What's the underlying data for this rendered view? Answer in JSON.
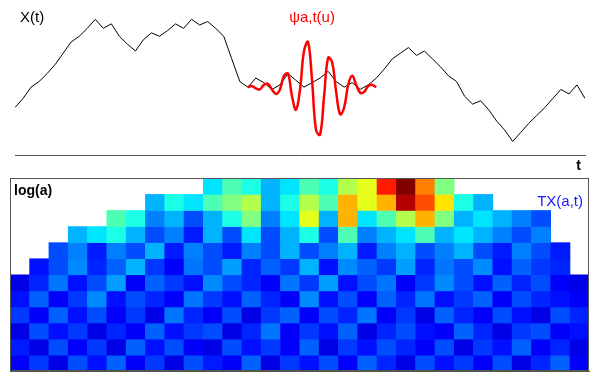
{
  "chart_data": [
    {
      "type": "line",
      "xlabel": "t",
      "x": [
        0,
        1,
        2,
        3,
        4,
        5,
        6,
        7,
        8,
        9,
        10,
        11,
        12,
        13,
        14,
        15,
        16,
        17,
        18,
        19,
        20,
        21,
        22,
        23,
        24,
        25,
        26,
        27,
        28,
        29,
        30,
        31,
        32,
        33,
        34,
        35,
        36,
        37,
        38,
        39,
        40,
        41,
        42,
        43,
        44,
        45,
        46,
        47,
        48,
        49,
        50,
        51,
        52,
        53,
        54,
        55,
        56,
        57,
        58,
        59,
        60,
        61,
        62,
        63,
        64,
        65,
        66,
        67,
        68,
        69,
        70,
        71
      ],
      "series": [
        {
          "name": "X(t)",
          "color": "#000000",
          "values": [
            42,
            50,
            60,
            65,
            72,
            80,
            90,
            100,
            105,
            112,
            120,
            112,
            116,
            105,
            98,
            92,
            102,
            108,
            105,
            110,
            116,
            112,
            120,
            115,
            118,
            112,
            105,
            85,
            65,
            60,
            68,
            64,
            58,
            62,
            72,
            66,
            60,
            64,
            68,
            74,
            65,
            60,
            64,
            58,
            62,
            68,
            76,
            85,
            90,
            95,
            88,
            92,
            85,
            78,
            70,
            65,
            52,
            45,
            48,
            40,
            30,
            22,
            12,
            20,
            28,
            35,
            42,
            50,
            58,
            54,
            62,
            50
          ]
        },
        {
          "name": "ψa,t(u)",
          "color": "#ff0000",
          "x": [
            29,
            29.5,
            30,
            30.5,
            31,
            31.5,
            32,
            32.5,
            33,
            33.5,
            34,
            34.5,
            35,
            35.5,
            36,
            36.5,
            37,
            37.5,
            38,
            38.5,
            39,
            39.5,
            40,
            40.5,
            41,
            41.5,
            42,
            42.5,
            43,
            43.5,
            44,
            44.5,
            45
          ],
          "values": [
            60,
            61,
            59,
            58,
            62,
            63,
            58,
            54,
            58,
            70,
            72,
            52,
            40,
            58,
            92,
            100,
            66,
            22,
            18,
            52,
            86,
            82,
            56,
            36,
            42,
            62,
            70,
            62,
            55,
            56,
            61,
            62,
            60
          ]
        }
      ],
      "xlim": [
        0,
        71
      ],
      "ylim": [
        0,
        130
      ],
      "tick_labels": false,
      "grid": false
    },
    {
      "type": "heatmap",
      "ylabel": "log(a)",
      "annotation": "TX(a,t)",
      "xlim": [
        0,
        30
      ],
      "ylim": [
        0,
        12
      ],
      "zlim": [
        0,
        1
      ],
      "cells": [
        [
          0.12,
          0.18,
          0.1,
          0.2,
          0.14,
          0.22,
          0.12,
          0.18,
          0.1,
          0.2,
          0.15,
          0.12,
          0.22,
          0.1,
          0.18,
          0.14,
          0.2,
          0.12,
          0.22,
          0.16,
          0.1,
          0.2,
          0.14,
          0.18,
          0.12,
          0.2,
          0.1,
          0.16,
          0.22,
          0.12
        ],
        [
          0.15,
          0.1,
          0.2,
          0.12,
          0.18,
          0.1,
          0.22,
          0.14,
          0.2,
          0.12,
          0.1,
          0.2,
          0.14,
          0.18,
          0.12,
          0.22,
          0.1,
          0.18,
          0.14,
          0.2,
          0.16,
          0.12,
          0.2,
          0.1,
          0.18,
          0.14,
          0.22,
          0.12,
          0.16,
          0.1
        ],
        [
          0.1,
          0.2,
          0.14,
          0.18,
          0.1,
          0.16,
          0.12,
          0.22,
          0.14,
          0.18,
          0.2,
          0.1,
          0.16,
          0.24,
          0.12,
          0.18,
          0.14,
          0.22,
          0.1,
          0.16,
          0.2,
          0.14,
          0.12,
          0.22,
          0.16,
          0.1,
          0.18,
          0.2,
          0.12,
          0.14
        ],
        [
          0.18,
          0.12,
          0.22,
          0.14,
          0.2,
          0.12,
          0.18,
          0.1,
          0.24,
          0.16,
          0.12,
          0.2,
          0.1,
          0.18,
          0.22,
          0.12,
          0.2,
          0.16,
          0.24,
          0.12,
          0.18,
          0.1,
          0.22,
          0.16,
          0.12,
          0.2,
          0.14,
          0.1,
          0.2,
          0.16
        ],
        [
          0.14,
          0.22,
          0.12,
          0.18,
          0.26,
          0.14,
          0.2,
          0.16,
          0.12,
          0.24,
          0.18,
          0.14,
          0.22,
          0.16,
          0.12,
          0.26,
          0.14,
          0.2,
          0.12,
          0.22,
          0.16,
          0.24,
          0.14,
          0.18,
          0.22,
          0.12,
          0.2,
          0.16,
          0.14,
          0.12
        ],
        [
          0.1,
          0.16,
          0.24,
          0.14,
          0.2,
          0.28,
          0.12,
          0.22,
          0.18,
          0.14,
          0.26,
          0.2,
          0.16,
          0.12,
          0.24,
          0.18,
          0.28,
          0.14,
          0.2,
          0.24,
          0.12,
          0.18,
          0.26,
          0.2,
          0.14,
          0.22,
          0.16,
          0.2,
          0.12,
          0.1
        ],
        [
          null,
          0.14,
          0.2,
          0.26,
          0.16,
          0.22,
          0.3,
          0.18,
          0.12,
          0.24,
          0.2,
          0.28,
          0.16,
          0.22,
          0.18,
          0.3,
          0.14,
          0.26,
          0.22,
          0.18,
          0.28,
          0.16,
          0.24,
          0.2,
          0.26,
          0.14,
          0.22,
          0.18,
          0.16,
          null
        ],
        [
          null,
          null,
          0.2,
          0.25,
          0.15,
          0.25,
          0.2,
          0.3,
          0.15,
          0.25,
          0.2,
          0.15,
          0.25,
          0.2,
          0.3,
          0.2,
          0.25,
          0.3,
          0.15,
          0.25,
          0.3,
          0.2,
          0.25,
          0.3,
          0.2,
          0.15,
          0.25,
          0.2,
          0.15,
          null
        ],
        [
          null,
          null,
          null,
          0.3,
          0.35,
          0.4,
          0.3,
          0.2,
          0.25,
          0.15,
          0.3,
          0.2,
          0.35,
          0.2,
          0.3,
          0.4,
          0.2,
          0.45,
          0.25,
          0.3,
          0.35,
          0.45,
          0.3,
          0.35,
          0.3,
          0.25,
          0.2,
          0.25,
          null,
          null
        ],
        [
          null,
          null,
          null,
          null,
          null,
          0.45,
          0.4,
          0.25,
          0.3,
          0.2,
          0.3,
          0.4,
          0.5,
          0.25,
          0.35,
          0.6,
          0.3,
          0.7,
          0.35,
          0.45,
          0.55,
          0.7,
          0.5,
          0.3,
          0.35,
          0.3,
          0.25,
          0.2,
          null,
          null
        ],
        [
          null,
          null,
          null,
          null,
          null,
          null,
          null,
          0.3,
          0.4,
          0.35,
          0.45,
          0.5,
          0.55,
          0.3,
          0.4,
          0.55,
          0.45,
          0.7,
          0.6,
          0.7,
          0.95,
          0.8,
          0.65,
          0.4,
          0.3,
          null,
          null,
          null,
          null,
          null
        ],
        [
          null,
          null,
          null,
          null,
          null,
          null,
          null,
          null,
          null,
          null,
          0.35,
          0.45,
          0.4,
          0.3,
          0.35,
          0.45,
          0.4,
          0.55,
          0.6,
          0.85,
          1.0,
          0.75,
          0.5,
          null,
          null,
          null,
          null,
          null,
          null,
          null
        ]
      ],
      "tick_labels": false,
      "grid": false
    }
  ]
}
